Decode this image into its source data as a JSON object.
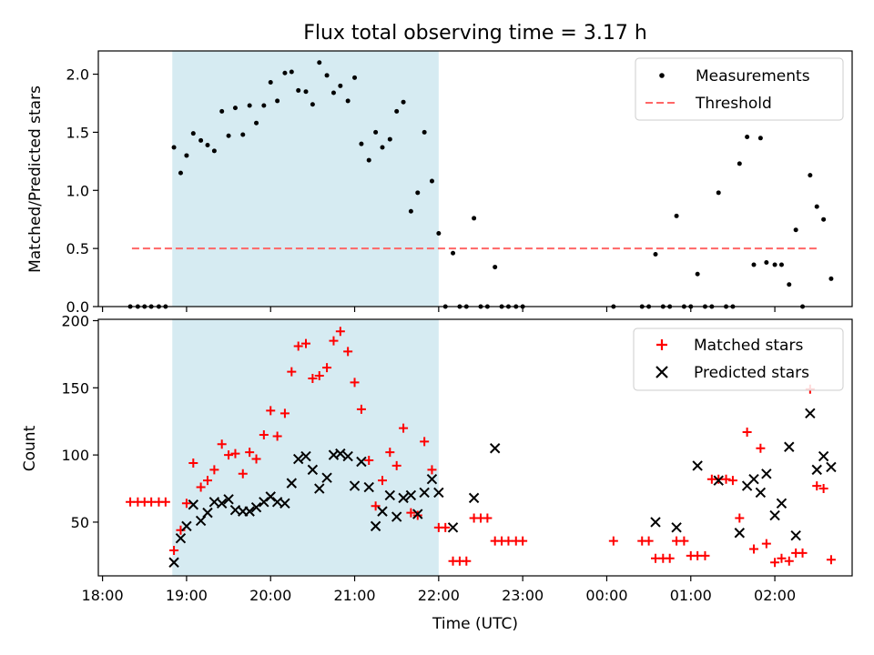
{
  "colors": {
    "shade": "#add8e6",
    "measurement": "#000000",
    "threshold": "#ff6666",
    "matched": "#ff0000",
    "predicted": "#000000"
  },
  "chart_data": {
    "type": "scatter",
    "title": "Flux total observing time = 3.17 h",
    "xlabel": "Time (UTC)",
    "x_unit": "hours since 18:00 UTC (values above 6 are after midnight)",
    "xlim": [
      -0.05,
      8.92
    ],
    "xticks": [
      {
        "v": 0,
        "label": "18:00"
      },
      {
        "v": 1,
        "label": "19:00"
      },
      {
        "v": 2,
        "label": "20:00"
      },
      {
        "v": 3,
        "label": "21:00"
      },
      {
        "v": 4,
        "label": "22:00"
      },
      {
        "v": 5,
        "label": "23:00"
      },
      {
        "v": 6,
        "label": "00:00"
      },
      {
        "v": 7,
        "label": "01:00"
      },
      {
        "v": 8,
        "label": "02:00"
      }
    ],
    "observing_window": [
      0.83,
      4.0
    ],
    "top": {
      "ylabel": "Matched/Predicted stars",
      "ylim": [
        0,
        2.2
      ],
      "yticks": [
        {
          "v": 0,
          "label": "0.0"
        },
        {
          "v": 0.5,
          "label": "0.5"
        },
        {
          "v": 1.0,
          "label": "1.0"
        },
        {
          "v": 1.5,
          "label": "1.5"
        },
        {
          "v": 2.0,
          "label": "2.0"
        }
      ],
      "threshold": 0.5,
      "threshold_x": [
        0.35,
        8.5
      ],
      "legend": [
        "Measurements",
        "Threshold"
      ],
      "measurements": [
        [
          0.33,
          0
        ],
        [
          0.42,
          0
        ],
        [
          0.5,
          0
        ],
        [
          0.58,
          0
        ],
        [
          0.67,
          0
        ],
        [
          0.75,
          0
        ],
        [
          0.85,
          1.37
        ],
        [
          0.93,
          1.15
        ],
        [
          1.0,
          1.3
        ],
        [
          1.08,
          1.49
        ],
        [
          1.17,
          1.43
        ],
        [
          1.25,
          1.39
        ],
        [
          1.33,
          1.34
        ],
        [
          1.42,
          1.68
        ],
        [
          1.5,
          1.47
        ],
        [
          1.58,
          1.71
        ],
        [
          1.67,
          1.48
        ],
        [
          1.75,
          1.73
        ],
        [
          1.83,
          1.58
        ],
        [
          1.92,
          1.73
        ],
        [
          2.0,
          1.93
        ],
        [
          2.08,
          1.77
        ],
        [
          2.17,
          2.01
        ],
        [
          2.25,
          2.02
        ],
        [
          2.33,
          1.86
        ],
        [
          2.42,
          1.85
        ],
        [
          2.5,
          1.74
        ],
        [
          2.58,
          2.1
        ],
        [
          2.67,
          1.99
        ],
        [
          2.75,
          1.84
        ],
        [
          2.83,
          1.9
        ],
        [
          2.92,
          1.77
        ],
        [
          3.0,
          1.97
        ],
        [
          3.08,
          1.4
        ],
        [
          3.17,
          1.26
        ],
        [
          3.25,
          1.5
        ],
        [
          3.33,
          1.37
        ],
        [
          3.42,
          1.44
        ],
        [
          3.5,
          1.68
        ],
        [
          3.58,
          1.76
        ],
        [
          3.67,
          0.82
        ],
        [
          3.75,
          0.98
        ],
        [
          3.83,
          1.5
        ],
        [
          3.92,
          1.08
        ],
        [
          4.0,
          0.63
        ],
        [
          4.08,
          0
        ],
        [
          4.17,
          0.46
        ],
        [
          4.25,
          0
        ],
        [
          4.33,
          0
        ],
        [
          4.42,
          0.76
        ],
        [
          4.5,
          0
        ],
        [
          4.58,
          0
        ],
        [
          4.67,
          0.34
        ],
        [
          4.75,
          0
        ],
        [
          4.83,
          0
        ],
        [
          4.92,
          0
        ],
        [
          5.0,
          0
        ],
        [
          6.08,
          0
        ],
        [
          6.42,
          0
        ],
        [
          6.5,
          0
        ],
        [
          6.58,
          0.45
        ],
        [
          6.67,
          0
        ],
        [
          6.75,
          0
        ],
        [
          6.83,
          0.78
        ],
        [
          6.92,
          0
        ],
        [
          7.0,
          0
        ],
        [
          7.08,
          0.28
        ],
        [
          7.17,
          0
        ],
        [
          7.25,
          0
        ],
        [
          7.33,
          0.98
        ],
        [
          7.42,
          0
        ],
        [
          7.5,
          0
        ],
        [
          7.58,
          1.23
        ],
        [
          7.67,
          1.46
        ],
        [
          7.75,
          0.36
        ],
        [
          7.83,
          1.45
        ],
        [
          7.9,
          0.38
        ],
        [
          8.0,
          0.36
        ],
        [
          8.08,
          0.36
        ],
        [
          8.17,
          0.19
        ],
        [
          8.25,
          0.66
        ],
        [
          8.33,
          0
        ],
        [
          8.42,
          1.13
        ],
        [
          8.5,
          0.86
        ],
        [
          8.58,
          0.75
        ],
        [
          8.67,
          0.24
        ]
      ]
    },
    "bottom": {
      "ylabel": "Count",
      "ylim": [
        10,
        201
      ],
      "yticks": [
        {
          "v": 50,
          "label": "50"
        },
        {
          "v": 100,
          "label": "100"
        },
        {
          "v": 150,
          "label": "150"
        },
        {
          "v": 200,
          "label": "200"
        }
      ],
      "legend": [
        "Matched stars",
        "Predicted stars"
      ],
      "matched": [
        [
          0.33,
          65
        ],
        [
          0.42,
          65
        ],
        [
          0.5,
          65
        ],
        [
          0.58,
          65
        ],
        [
          0.67,
          65
        ],
        [
          0.75,
          65
        ],
        [
          0.85,
          29
        ],
        [
          0.93,
          44
        ],
        [
          1.0,
          64
        ],
        [
          1.08,
          94
        ],
        [
          1.17,
          76
        ],
        [
          1.25,
          81
        ],
        [
          1.33,
          89
        ],
        [
          1.42,
          108
        ],
        [
          1.5,
          100
        ],
        [
          1.58,
          101
        ],
        [
          1.67,
          86
        ],
        [
          1.75,
          102
        ],
        [
          1.83,
          97
        ],
        [
          1.92,
          115
        ],
        [
          2.0,
          133
        ],
        [
          2.08,
          114
        ],
        [
          2.17,
          131
        ],
        [
          2.25,
          162
        ],
        [
          2.33,
          181
        ],
        [
          2.42,
          183
        ],
        [
          2.5,
          157
        ],
        [
          2.58,
          159
        ],
        [
          2.67,
          165
        ],
        [
          2.75,
          185
        ],
        [
          2.83,
          192
        ],
        [
          2.92,
          177
        ],
        [
          3.0,
          154
        ],
        [
          3.08,
          134
        ],
        [
          3.17,
          96
        ],
        [
          3.25,
          62
        ],
        [
          3.33,
          81
        ],
        [
          3.42,
          102
        ],
        [
          3.5,
          92
        ],
        [
          3.58,
          120
        ],
        [
          3.67,
          57
        ],
        [
          3.75,
          55
        ],
        [
          3.83,
          110
        ],
        [
          3.92,
          89
        ],
        [
          4.0,
          46
        ],
        [
          4.08,
          46
        ],
        [
          4.17,
          21
        ],
        [
          4.25,
          21
        ],
        [
          4.33,
          21
        ],
        [
          4.42,
          53
        ],
        [
          4.5,
          53
        ],
        [
          4.58,
          53
        ],
        [
          4.67,
          36
        ],
        [
          4.75,
          36
        ],
        [
          4.83,
          36
        ],
        [
          4.92,
          36
        ],
        [
          5.0,
          36
        ],
        [
          6.08,
          36
        ],
        [
          6.42,
          36
        ],
        [
          6.5,
          36
        ],
        [
          6.58,
          23
        ],
        [
          6.67,
          23
        ],
        [
          6.75,
          23
        ],
        [
          6.83,
          36
        ],
        [
          6.92,
          36
        ],
        [
          7.0,
          25
        ],
        [
          7.08,
          25
        ],
        [
          7.17,
          25
        ],
        [
          7.25,
          82
        ],
        [
          7.33,
          82
        ],
        [
          7.42,
          82
        ],
        [
          7.5,
          81
        ],
        [
          7.58,
          53
        ],
        [
          7.67,
          117
        ],
        [
          7.75,
          30
        ],
        [
          7.83,
          105
        ],
        [
          7.9,
          34
        ],
        [
          8.0,
          20
        ],
        [
          8.08,
          23
        ],
        [
          8.17,
          21
        ],
        [
          8.25,
          27
        ],
        [
          8.33,
          27
        ],
        [
          8.42,
          149
        ],
        [
          8.5,
          77
        ],
        [
          8.58,
          75
        ],
        [
          8.67,
          22
        ]
      ],
      "predicted": [
        [
          0.85,
          20
        ],
        [
          0.93,
          38
        ],
        [
          1.0,
          47
        ],
        [
          1.08,
          63
        ],
        [
          1.17,
          51
        ],
        [
          1.25,
          57
        ],
        [
          1.33,
          65
        ],
        [
          1.42,
          64
        ],
        [
          1.5,
          67
        ],
        [
          1.58,
          59
        ],
        [
          1.67,
          58
        ],
        [
          1.75,
          58
        ],
        [
          1.83,
          61
        ],
        [
          1.92,
          65
        ],
        [
          2.0,
          69
        ],
        [
          2.08,
          65
        ],
        [
          2.17,
          64
        ],
        [
          2.25,
          79
        ],
        [
          2.33,
          97
        ],
        [
          2.42,
          99
        ],
        [
          2.5,
          89
        ],
        [
          2.58,
          75
        ],
        [
          2.67,
          83
        ],
        [
          2.75,
          100
        ],
        [
          2.83,
          101
        ],
        [
          2.92,
          99
        ],
        [
          3.0,
          77
        ],
        [
          3.08,
          95
        ],
        [
          3.17,
          76
        ],
        [
          3.25,
          47
        ],
        [
          3.33,
          58
        ],
        [
          3.42,
          70
        ],
        [
          3.5,
          54
        ],
        [
          3.58,
          68
        ],
        [
          3.67,
          70
        ],
        [
          3.75,
          56
        ],
        [
          3.83,
          72
        ],
        [
          3.92,
          82
        ],
        [
          4.0,
          72
        ],
        [
          4.17,
          46
        ],
        [
          4.42,
          68
        ],
        [
          4.67,
          105
        ],
        [
          6.58,
          50
        ],
        [
          6.83,
          46
        ],
        [
          7.08,
          92
        ],
        [
          7.33,
          81
        ],
        [
          7.58,
          42
        ],
        [
          7.67,
          77
        ],
        [
          7.75,
          82
        ],
        [
          7.83,
          72
        ],
        [
          7.9,
          86
        ],
        [
          8.0,
          55
        ],
        [
          8.08,
          64
        ],
        [
          8.17,
          106
        ],
        [
          8.25,
          40
        ],
        [
          8.42,
          131
        ],
        [
          8.5,
          89
        ],
        [
          8.58,
          99
        ],
        [
          8.67,
          91
        ]
      ]
    }
  }
}
